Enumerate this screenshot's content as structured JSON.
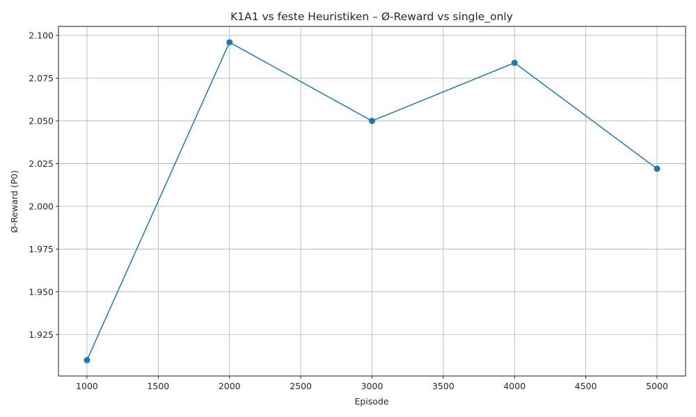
{
  "chart_data": {
    "type": "line",
    "title": "K1A1 vs feste Heuristiken – Ø-Reward vs single_only",
    "xlabel": "Episode",
    "ylabel": "Ø-Reward (P0)",
    "x": [
      1000,
      2000,
      3000,
      4000,
      5000
    ],
    "series": [
      {
        "values": [
          1.91,
          2.096,
          2.05,
          2.084,
          2.022
        ],
        "color": "#1f77b4",
        "marker": "circle"
      }
    ],
    "xlim": [
      800,
      5200
    ],
    "ylim": [
      1.9007,
      2.1053
    ],
    "x_ticks": [
      1000,
      1500,
      2000,
      2500,
      3000,
      3500,
      4000,
      4500,
      5000
    ],
    "x_tick_labels": [
      "1000",
      "1500",
      "2000",
      "2500",
      "3000",
      "3500",
      "4000",
      "4500",
      "5000"
    ],
    "y_ticks": [
      1.925,
      1.95,
      1.975,
      2.0,
      2.025,
      2.05,
      2.075,
      2.1
    ],
    "y_tick_labels": [
      "1.925",
      "1.950",
      "1.975",
      "2.000",
      "2.025",
      "2.050",
      "2.075",
      "2.100"
    ],
    "grid": true,
    "legend": "none"
  }
}
